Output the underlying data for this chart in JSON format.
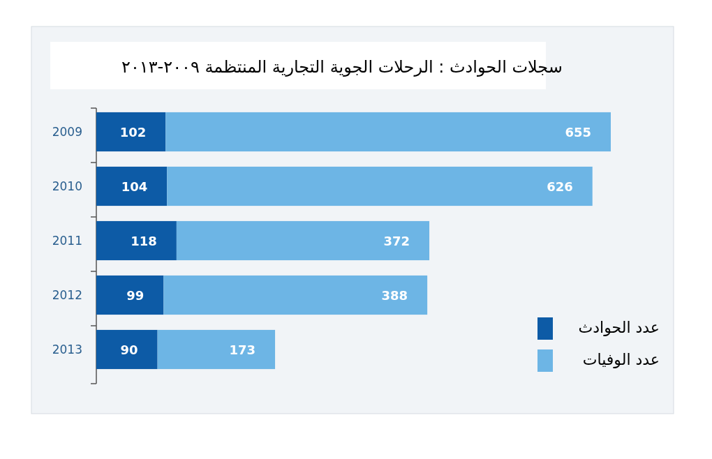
{
  "chart_data": {
    "type": "bar",
    "orientation": "horizontal",
    "stacked": true,
    "data_labels": true,
    "legend": "bottom right",
    "grid": false,
    "title": "سجلات الحوادث : الرحلات الجوية التجارية المنتظمة ٢٠٠٩-٢٠١٣",
    "categories": [
      "2009",
      "2010",
      "2011",
      "2012",
      "2013"
    ],
    "series": [
      {
        "name": "عدد الحوادث",
        "color": "#0d5ba6",
        "values": [
          102,
          104,
          118,
          99,
          90
        ]
      },
      {
        "name": "عدد الوفيات",
        "color": "#6db5e5",
        "values": [
          655,
          626,
          372,
          388,
          173
        ]
      }
    ]
  }
}
